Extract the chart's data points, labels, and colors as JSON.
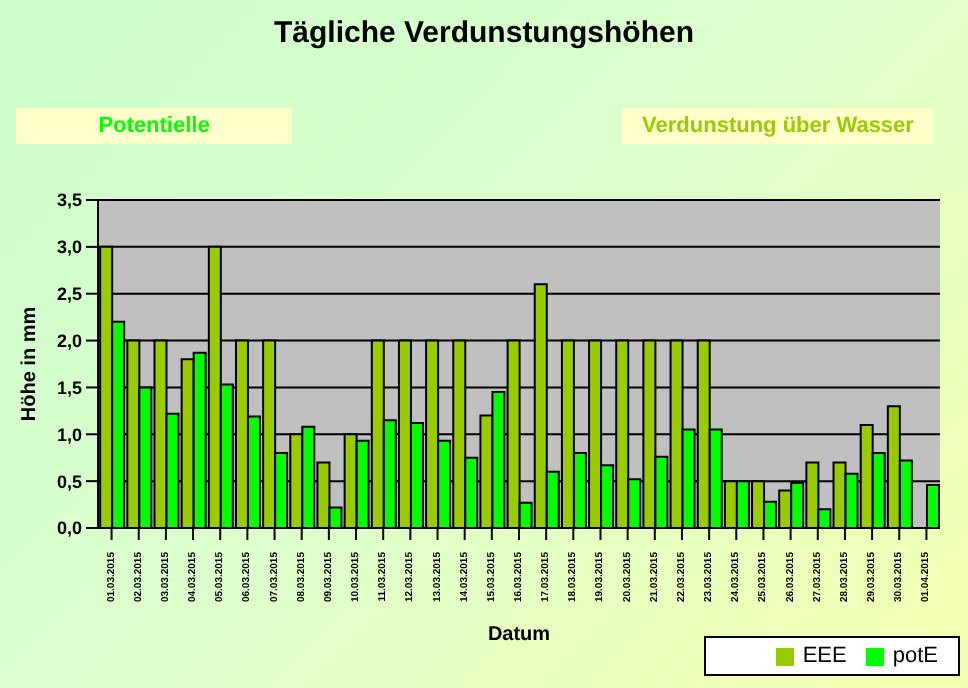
{
  "chart_data": {
    "type": "bar",
    "title": "Tägliche Verdunstungshöhen",
    "annotations": [
      "Potentielle",
      "Verdunstung über Wasser"
    ],
    "xlabel": "Datum",
    "ylabel": "Höhe in mm",
    "categories": [
      "01.03.2015",
      "02.03.2015",
      "03.03.2015",
      "04.03.2015",
      "05.03.2015",
      "06.03.2015",
      "07.03.2015",
      "08.03.2015",
      "09.03.2015",
      "10.03.2015",
      "11.03.2015",
      "12.03.2015",
      "13.03.2015",
      "14.03.2015",
      "15.03.2015",
      "16.03.2015",
      "17.03.2015",
      "18.03.2015",
      "19.03.2015",
      "20.03.2015",
      "21.03.2015",
      "22.03.2015",
      "23.03.2015",
      "24.03.2015",
      "25.03.2015",
      "26.03.2015",
      "27.03.2015",
      "28.03.2015",
      "29.03.2015",
      "30.03.2015",
      "01.04.2015"
    ],
    "series": [
      {
        "name": "EEE",
        "color": "#99cc00",
        "values": [
          3.0,
          2.0,
          2.0,
          1.8,
          3.0,
          2.0,
          2.0,
          1.0,
          0.7,
          1.0,
          2.0,
          2.0,
          2.0,
          2.0,
          1.2,
          2.0,
          2.6,
          2.0,
          2.0,
          2.0,
          2.0,
          2.0,
          2.0,
          0.5,
          0.5,
          0.4,
          0.7,
          0.7,
          1.1,
          1.3,
          null
        ]
      },
      {
        "name": "potE",
        "color": "#00ff00",
        "values": [
          2.2,
          1.5,
          1.22,
          1.87,
          1.53,
          1.19,
          0.8,
          1.08,
          0.22,
          0.93,
          1.15,
          1.12,
          0.93,
          0.75,
          1.45,
          0.27,
          0.6,
          0.8,
          0.67,
          0.52,
          0.76,
          1.05,
          1.05,
          0.5,
          0.28,
          0.48,
          0.2,
          0.58,
          0.8,
          0.72,
          0.46
        ]
      }
    ],
    "ylim": [
      0,
      3.5
    ],
    "yticks": [
      {
        "value": 0,
        "label": "0,0"
      },
      {
        "value": 0.5,
        "label": "0,5"
      },
      {
        "value": 1,
        "label": "1,0"
      },
      {
        "value": 1.5,
        "label": "1,5"
      },
      {
        "value": 2,
        "label": "2,0"
      },
      {
        "value": 2.5,
        "label": "2,5"
      },
      {
        "value": 3,
        "label": "3,0"
      },
      {
        "value": 3.5,
        "label": "3,5"
      }
    ],
    "grid": "y",
    "legend": "bottom right"
  }
}
